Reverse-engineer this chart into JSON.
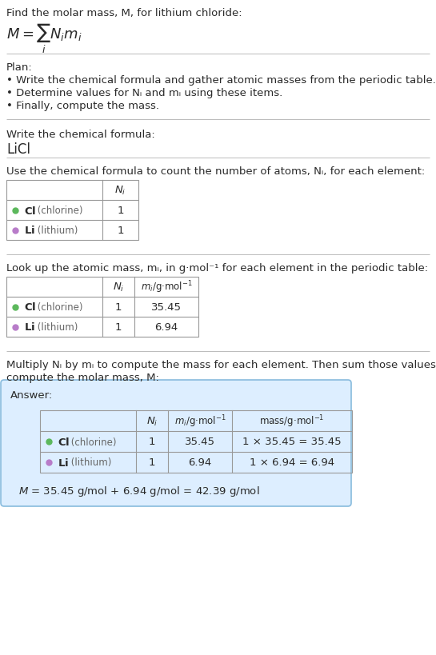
{
  "title_text": "Find the molar mass, M, for lithium chloride:",
  "bg_color": "#ffffff",
  "text_color": "#2a2a2a",
  "line_color": "#bbbbbb",
  "plan_header": "Plan:",
  "plan_items": [
    "• Write the chemical formula and gather atomic masses from the periodic table.",
    "• Determine values for Nᵢ and mᵢ using these items.",
    "• Finally, compute the mass."
  ],
  "formula_section_header": "Write the chemical formula:",
  "formula_value": "LiCl",
  "count_header": "Use the chemical formula to count the number of atoms, Nᵢ, for each element:",
  "lookup_header": "Look up the atomic mass, mᵢ, in g·mol⁻¹ for each element in the periodic table:",
  "multiply_header1": "Multiply Nᵢ by mᵢ to compute the mass for each element. Then sum those values to",
  "multiply_header2": "compute the molar mass, M:",
  "answer_label": "Answer:",
  "elements": [
    {
      "symbol": "Cl",
      "name": "chlorine",
      "color": "#5cb85c",
      "N": 1,
      "m": 35.45
    },
    {
      "symbol": "Li",
      "name": "lithium",
      "color": "#b87cc9",
      "N": 1,
      "m": 6.94
    }
  ],
  "final_eq": "M = 35.45 g/mol + 6.94 g/mol = 42.39 g/mol",
  "answer_bg": "#ddeeff",
  "answer_border": "#88bbdd",
  "table_border": "#999999",
  "font_size": 9.5,
  "font_size_small": 8.5,
  "font_size_formula": 13
}
